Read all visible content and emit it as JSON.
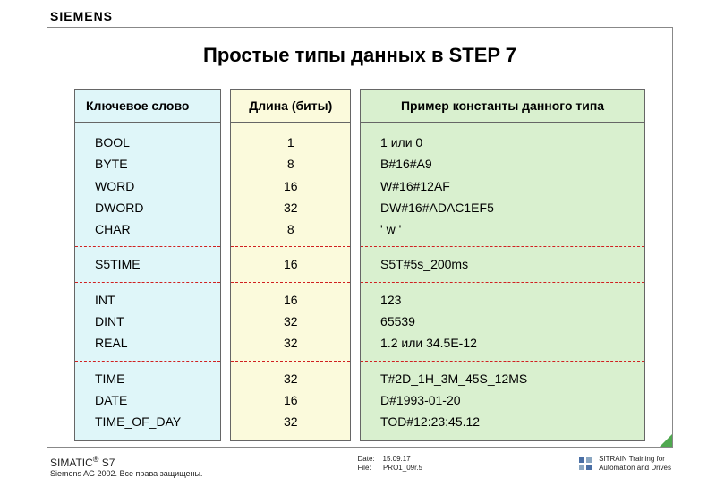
{
  "brand": "SIEMENS",
  "title": "Простые типы данных в STEP 7",
  "columns": {
    "keyword_header": "Ключевое слово",
    "length_header": "Длина (биты)",
    "example_header": "Пример константы данного типа"
  },
  "colors": {
    "keyword_bg": "#dff6f9",
    "length_bg": "#fbfadc",
    "example_bg": "#d9f0cf",
    "separator": "#d02020",
    "corner": "#4fa84f",
    "border": "#666666",
    "text": "#000000",
    "page_bg": "#ffffff"
  },
  "fonts": {
    "title_size_pt": 16,
    "header_size_pt": 11,
    "body_size_pt": 11,
    "footer_size_pt": 7
  },
  "groups": [
    [
      {
        "keyword": "BOOL",
        "length": "1",
        "example": "1 или 0"
      },
      {
        "keyword": "BYTE",
        "length": "8",
        "example": "B#16#A9"
      },
      {
        "keyword": "WORD",
        "length": "16",
        "example": "W#16#12AF"
      },
      {
        "keyword": "DWORD",
        "length": "32",
        "example": "DW#16#ADAC1EF5"
      },
      {
        "keyword": "CHAR",
        "length": "8",
        "example": "' w '"
      }
    ],
    [
      {
        "keyword": "S5TIME",
        "length": "16",
        "example": "S5T#5s_200ms"
      }
    ],
    [
      {
        "keyword": "INT",
        "length": "16",
        "example": "123"
      },
      {
        "keyword": "DINT",
        "length": "32",
        "example": "65539"
      },
      {
        "keyword": "REAL",
        "length": "32",
        "example": "1.2 или 34.5E-12"
      }
    ],
    [
      {
        "keyword": "TIME",
        "length": "32",
        "example": "T#2D_1H_3M_45S_12MS"
      },
      {
        "keyword": "DATE",
        "length": "16",
        "example": "D#1993-01-20"
      },
      {
        "keyword": "TIME_OF_DAY",
        "length": "32",
        "example": "TOD#12:23:45.12"
      }
    ]
  ],
  "footer": {
    "product": "SIMATIC",
    "product_suffix": "S7",
    "reg_mark": "®",
    "copyright": "Siemens AG 2002. Все права защищены.",
    "date_label": "Date:",
    "date_value": "15.09.17",
    "file_label": "File:",
    "file_value": "PRO1_09r.5",
    "sitrain_line1": "SITRAIN Training for",
    "sitrain_line2": "Automation and Drives"
  }
}
